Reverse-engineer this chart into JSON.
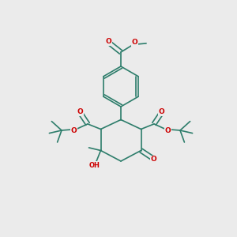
{
  "bg_color": "#ebebeb",
  "bond_color": "#2d7d6b",
  "atom_color_O": "#cc0000",
  "line_width": 1.2,
  "figsize": [
    3.0,
    3.0
  ],
  "dpi": 100,
  "xlim": [
    0,
    10
  ],
  "ylim": [
    0,
    10
  ]
}
